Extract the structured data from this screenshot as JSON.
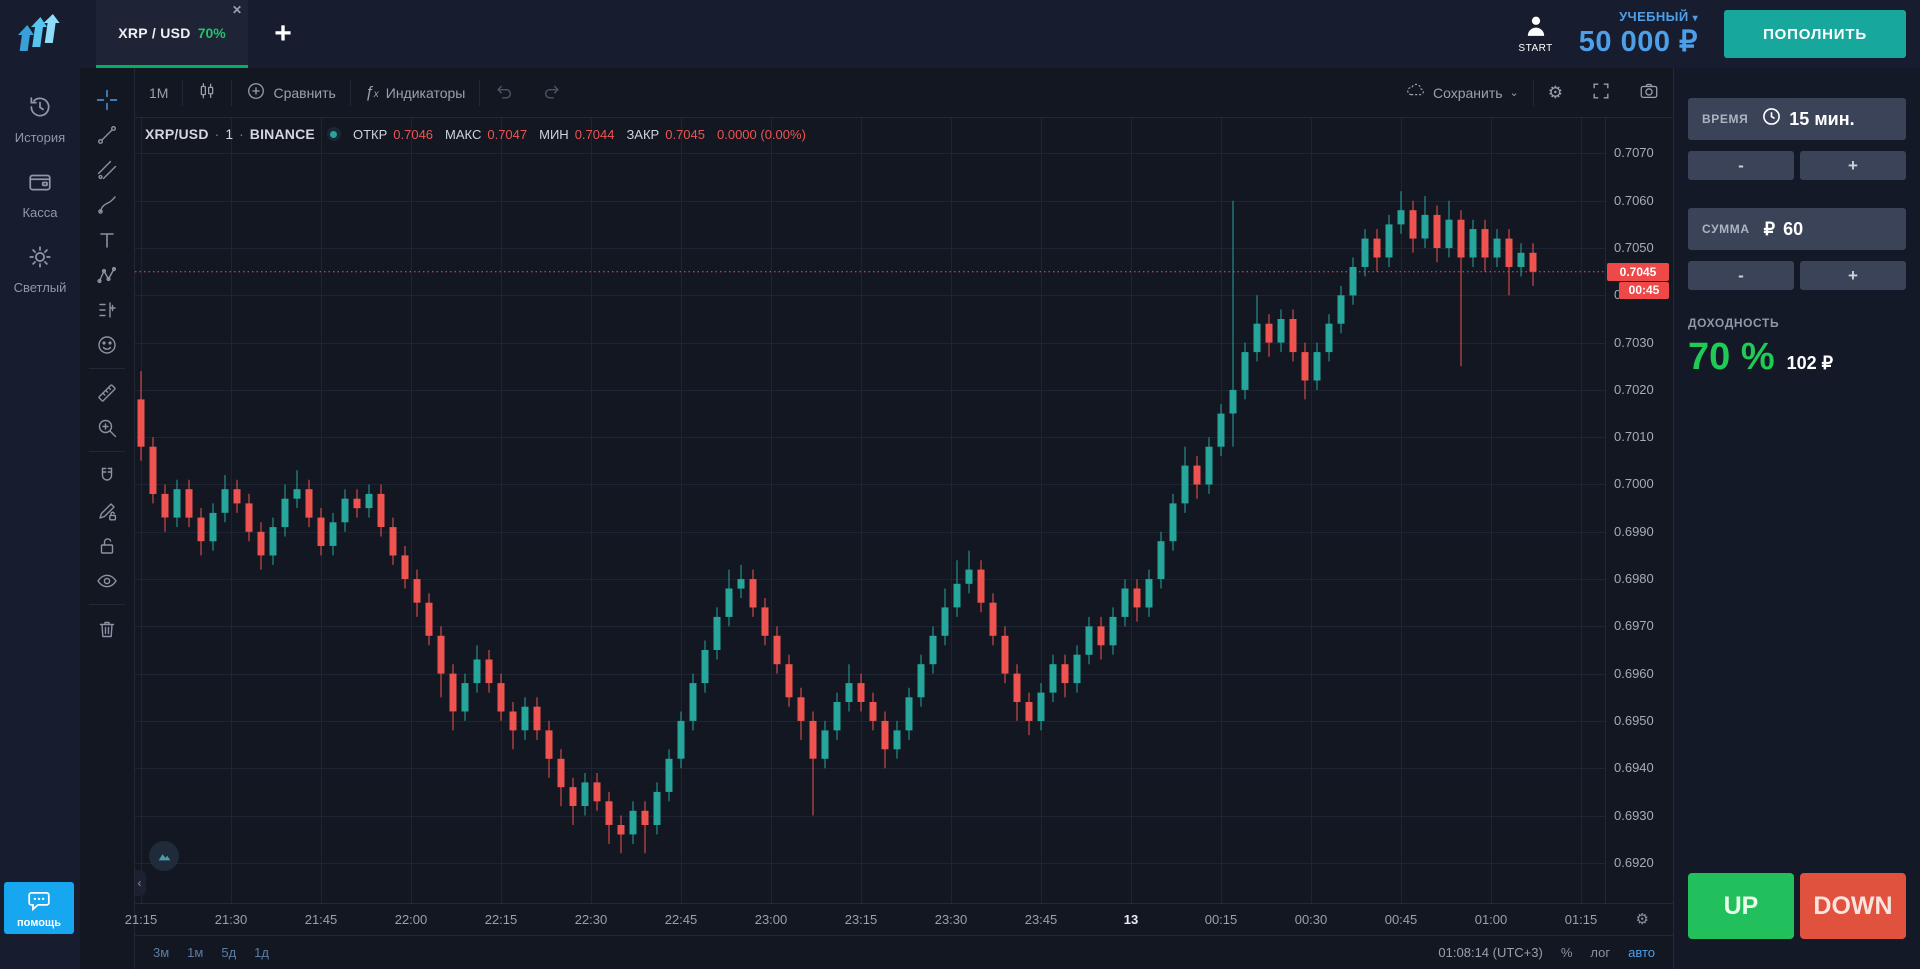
{
  "topbar": {
    "tab": {
      "symbol": "XRP / USD",
      "payout": "70%"
    },
    "start_label": "START",
    "account_type": "УЧЕБНЫЙ",
    "balance": "50 000 ₽",
    "deposit_label": "ПОПОЛНИТЬ"
  },
  "sidebar": {
    "items": [
      {
        "icon": "history-icon",
        "label": "История"
      },
      {
        "icon": "wallet-icon",
        "label": "Касса"
      },
      {
        "icon": "sun-icon",
        "label": "Светлый"
      }
    ],
    "help_label": "помощь"
  },
  "drawing_tools": [
    {
      "icon": "crosshair-icon",
      "active": true
    },
    {
      "icon": "trend-line-icon"
    },
    {
      "icon": "fib-tools-icon"
    },
    {
      "icon": "brush-icon"
    },
    {
      "icon": "text-tool-icon"
    },
    {
      "icon": "pattern-xabcd-icon"
    },
    {
      "icon": "forecast-tool-icon"
    },
    {
      "icon": "emoji-icon",
      "sep_after": true
    },
    {
      "icon": "ruler-icon"
    },
    {
      "icon": "zoom-in-icon",
      "sep_after": true
    },
    {
      "icon": "magnet-icon"
    },
    {
      "icon": "draw-mode-icon"
    },
    {
      "icon": "lock-icon"
    },
    {
      "icon": "eye-icon",
      "sep_after": true
    },
    {
      "icon": "trash-icon"
    }
  ],
  "chart_toolbar": {
    "interval": "1М",
    "compare": "Сравнить",
    "indicators": "Индикаторы",
    "save": "Сохранить",
    "save_caret": "⌄"
  },
  "legend": {
    "symbol": "XRP/USD",
    "interval": "1",
    "exchange": "BINANCE",
    "sep": "·",
    "open_label": "ОТКР",
    "open": "0.7046",
    "high_label": "МАКС",
    "high": "0.7047",
    "low_label": "МИН",
    "low": "0.7044",
    "close_label": "ЗАКР",
    "close": "0.7045",
    "change": "0.0000 (0.00%)"
  },
  "bottom_bar": {
    "ranges": [
      "3м",
      "1м",
      "5д",
      "1д"
    ],
    "clock": "01:08:14 (UTC+3)",
    "percent": "%",
    "log": "лог",
    "auto": "авто"
  },
  "panel": {
    "time_label": "ВРЕМЯ",
    "time_value": "15 мин.",
    "amount_label": "СУММА",
    "amount_currency": "₽",
    "amount_value": "60",
    "minus": "-",
    "plus": "+",
    "payout_label": "ДОХОДНОСТЬ",
    "payout_percent": "70 %",
    "payout_amount": "102 ₽",
    "up_label": "UP",
    "down_label": "DOWN"
  },
  "colors": {
    "accent_blue": "#4d9fe8",
    "deposit_teal": "#18a79d",
    "candle_up": "#26a69a",
    "candle_down": "#ef5350",
    "payout_green": "#1fcb55",
    "up_button": "#22bf5d",
    "down_button": "#e0513e",
    "price_tag_red": "#ef4848",
    "tab_underline_green": "#00b061"
  },
  "chart_data": {
    "type": "candlestick",
    "symbol": "XRP/USD",
    "exchange": "BINANCE",
    "interval_label": "1",
    "minutes_per_candle": 2,
    "candles_per_x_label": 7.5,
    "current_price": 0.7045,
    "countdown": "00:45",
    "price_tag": "0.7045",
    "y_axis": {
      "min": 0.692,
      "max": 0.707,
      "step": 0.001,
      "labels": [
        "0.7070",
        "0.7060",
        "0.7050",
        "0.7040",
        "0.7030",
        "0.7020",
        "0.7010",
        "0.7000",
        "0.6990",
        "0.6980",
        "0.6970",
        "0.6960",
        "0.6950",
        "0.6940",
        "0.6930",
        "0.6920"
      ]
    },
    "x_labels": [
      "21:15",
      "21:30",
      "21:45",
      "22:00",
      "22:15",
      "22:30",
      "22:45",
      "23:00",
      "23:15",
      "23:30",
      "23:45",
      "13",
      "00:15",
      "00:30",
      "00:45",
      "01:00",
      "01:15"
    ],
    "candles": [
      [
        0.7018,
        0.7024,
        0.7005,
        0.7008
      ],
      [
        0.7008,
        0.701,
        0.6996,
        0.6998
      ],
      [
        0.6998,
        0.7,
        0.699,
        0.6993
      ],
      [
        0.6993,
        0.7001,
        0.6991,
        0.6999
      ],
      [
        0.6999,
        0.7001,
        0.6991,
        0.6993
      ],
      [
        0.6993,
        0.6995,
        0.6985,
        0.6988
      ],
      [
        0.6988,
        0.6996,
        0.6986,
        0.6994
      ],
      [
        0.6994,
        0.7002,
        0.6992,
        0.6999
      ],
      [
        0.6999,
        0.7001,
        0.6994,
        0.6996
      ],
      [
        0.6996,
        0.6998,
        0.6988,
        0.699
      ],
      [
        0.699,
        0.6992,
        0.6982,
        0.6985
      ],
      [
        0.6985,
        0.6993,
        0.6983,
        0.6991
      ],
      [
        0.6991,
        0.7,
        0.6989,
        0.6997
      ],
      [
        0.6997,
        0.7003,
        0.6995,
        0.6999
      ],
      [
        0.6999,
        0.7001,
        0.6991,
        0.6993
      ],
      [
        0.6993,
        0.6995,
        0.6985,
        0.6987
      ],
      [
        0.6987,
        0.6994,
        0.6985,
        0.6992
      ],
      [
        0.6992,
        0.6999,
        0.699,
        0.6997
      ],
      [
        0.6997,
        0.6999,
        0.6993,
        0.6995
      ],
      [
        0.6995,
        0.7,
        0.6993,
        0.6998
      ],
      [
        0.6998,
        0.7,
        0.6989,
        0.6991
      ],
      [
        0.6991,
        0.6993,
        0.6983,
        0.6985
      ],
      [
        0.6985,
        0.6987,
        0.6978,
        0.698
      ],
      [
        0.698,
        0.6982,
        0.6972,
        0.6975
      ],
      [
        0.6975,
        0.6977,
        0.6966,
        0.6968
      ],
      [
        0.6968,
        0.697,
        0.6955,
        0.696
      ],
      [
        0.696,
        0.6962,
        0.6948,
        0.6952
      ],
      [
        0.6952,
        0.696,
        0.695,
        0.6958
      ],
      [
        0.6958,
        0.6966,
        0.6956,
        0.6963
      ],
      [
        0.6963,
        0.6965,
        0.6956,
        0.6958
      ],
      [
        0.6958,
        0.696,
        0.695,
        0.6952
      ],
      [
        0.6952,
        0.6954,
        0.6944,
        0.6948
      ],
      [
        0.6948,
        0.6955,
        0.6946,
        0.6953
      ],
      [
        0.6953,
        0.6955,
        0.6946,
        0.6948
      ],
      [
        0.6948,
        0.695,
        0.6938,
        0.6942
      ],
      [
        0.6942,
        0.6944,
        0.6932,
        0.6936
      ],
      [
        0.6936,
        0.6938,
        0.6928,
        0.6932
      ],
      [
        0.6932,
        0.6939,
        0.693,
        0.6937
      ],
      [
        0.6937,
        0.6939,
        0.6931,
        0.6933
      ],
      [
        0.6933,
        0.6935,
        0.6924,
        0.6928
      ],
      [
        0.6928,
        0.693,
        0.6922,
        0.6926
      ],
      [
        0.6926,
        0.6933,
        0.6924,
        0.6931
      ],
      [
        0.6931,
        0.6933,
        0.6922,
        0.6928
      ],
      [
        0.6928,
        0.6937,
        0.6926,
        0.6935
      ],
      [
        0.6935,
        0.6944,
        0.6933,
        0.6942
      ],
      [
        0.6942,
        0.6952,
        0.694,
        0.695
      ],
      [
        0.695,
        0.696,
        0.6948,
        0.6958
      ],
      [
        0.6958,
        0.6967,
        0.6956,
        0.6965
      ],
      [
        0.6965,
        0.6974,
        0.6963,
        0.6972
      ],
      [
        0.6972,
        0.6982,
        0.697,
        0.6978
      ],
      [
        0.6978,
        0.6983,
        0.6976,
        0.698
      ],
      [
        0.698,
        0.6982,
        0.6972,
        0.6974
      ],
      [
        0.6974,
        0.6976,
        0.6966,
        0.6968
      ],
      [
        0.6968,
        0.697,
        0.696,
        0.6962
      ],
      [
        0.6962,
        0.6964,
        0.6953,
        0.6955
      ],
      [
        0.6955,
        0.6957,
        0.6946,
        0.695
      ],
      [
        0.695,
        0.6952,
        0.693,
        0.6942
      ],
      [
        0.6942,
        0.695,
        0.694,
        0.6948
      ],
      [
        0.6948,
        0.6956,
        0.6946,
        0.6954
      ],
      [
        0.6954,
        0.6962,
        0.6952,
        0.6958
      ],
      [
        0.6958,
        0.696,
        0.6952,
        0.6954
      ],
      [
        0.6954,
        0.6956,
        0.6948,
        0.695
      ],
      [
        0.695,
        0.6952,
        0.694,
        0.6944
      ],
      [
        0.6944,
        0.695,
        0.6942,
        0.6948
      ],
      [
        0.6948,
        0.6957,
        0.6946,
        0.6955
      ],
      [
        0.6955,
        0.6964,
        0.6953,
        0.6962
      ],
      [
        0.6962,
        0.697,
        0.696,
        0.6968
      ],
      [
        0.6968,
        0.6978,
        0.6966,
        0.6974
      ],
      [
        0.6974,
        0.6984,
        0.6972,
        0.6979
      ],
      [
        0.6979,
        0.6986,
        0.6977,
        0.6982
      ],
      [
        0.6982,
        0.6984,
        0.6973,
        0.6975
      ],
      [
        0.6975,
        0.6977,
        0.6966,
        0.6968
      ],
      [
        0.6968,
        0.697,
        0.6958,
        0.696
      ],
      [
        0.696,
        0.6962,
        0.695,
        0.6954
      ],
      [
        0.6954,
        0.6956,
        0.6947,
        0.695
      ],
      [
        0.695,
        0.6958,
        0.6948,
        0.6956
      ],
      [
        0.6956,
        0.6964,
        0.6954,
        0.6962
      ],
      [
        0.6962,
        0.6964,
        0.6955,
        0.6958
      ],
      [
        0.6958,
        0.6966,
        0.6956,
        0.6964
      ],
      [
        0.6964,
        0.6972,
        0.6962,
        0.697
      ],
      [
        0.697,
        0.6972,
        0.6963,
        0.6966
      ],
      [
        0.6966,
        0.6974,
        0.6964,
        0.6972
      ],
      [
        0.6972,
        0.698,
        0.697,
        0.6978
      ],
      [
        0.6978,
        0.698,
        0.6971,
        0.6974
      ],
      [
        0.6974,
        0.6982,
        0.6972,
        0.698
      ],
      [
        0.698,
        0.699,
        0.6978,
        0.6988
      ],
      [
        0.6988,
        0.6998,
        0.6986,
        0.6996
      ],
      [
        0.6996,
        0.7008,
        0.6994,
        0.7004
      ],
      [
        0.7004,
        0.7006,
        0.6997,
        0.7
      ],
      [
        0.7,
        0.701,
        0.6998,
        0.7008
      ],
      [
        0.7008,
        0.7017,
        0.7006,
        0.7015
      ],
      [
        0.7015,
        0.706,
        0.7008,
        0.702
      ],
      [
        0.702,
        0.703,
        0.7018,
        0.7028
      ],
      [
        0.7028,
        0.704,
        0.7026,
        0.7034
      ],
      [
        0.7034,
        0.7036,
        0.7027,
        0.703
      ],
      [
        0.703,
        0.7037,
        0.7028,
        0.7035
      ],
      [
        0.7035,
        0.7037,
        0.7026,
        0.7028
      ],
      [
        0.7028,
        0.703,
        0.7018,
        0.7022
      ],
      [
        0.7022,
        0.703,
        0.702,
        0.7028
      ],
      [
        0.7028,
        0.7036,
        0.7026,
        0.7034
      ],
      [
        0.7034,
        0.7042,
        0.7032,
        0.704
      ],
      [
        0.704,
        0.7048,
        0.7038,
        0.7046
      ],
      [
        0.7046,
        0.7054,
        0.7044,
        0.7052
      ],
      [
        0.7052,
        0.7054,
        0.7045,
        0.7048
      ],
      [
        0.7048,
        0.7057,
        0.7046,
        0.7055
      ],
      [
        0.7055,
        0.7062,
        0.7053,
        0.7058
      ],
      [
        0.7058,
        0.706,
        0.7049,
        0.7052
      ],
      [
        0.7052,
        0.7061,
        0.705,
        0.7057
      ],
      [
        0.7057,
        0.7059,
        0.7047,
        0.705
      ],
      [
        0.705,
        0.706,
        0.7048,
        0.7056
      ],
      [
        0.7056,
        0.7058,
        0.7025,
        0.7048
      ],
      [
        0.7048,
        0.7056,
        0.7046,
        0.7054
      ],
      [
        0.7054,
        0.7056,
        0.7045,
        0.7048
      ],
      [
        0.7048,
        0.7054,
        0.7046,
        0.7052
      ],
      [
        0.7052,
        0.7054,
        0.704,
        0.7046
      ],
      [
        0.7046,
        0.7051,
        0.7044,
        0.7049
      ],
      [
        0.7049,
        0.7051,
        0.7042,
        0.7045
      ]
    ],
    "up_color": "#26a69a",
    "down_color": "#ef5350",
    "grid": true,
    "legend_position": "top-left"
  }
}
